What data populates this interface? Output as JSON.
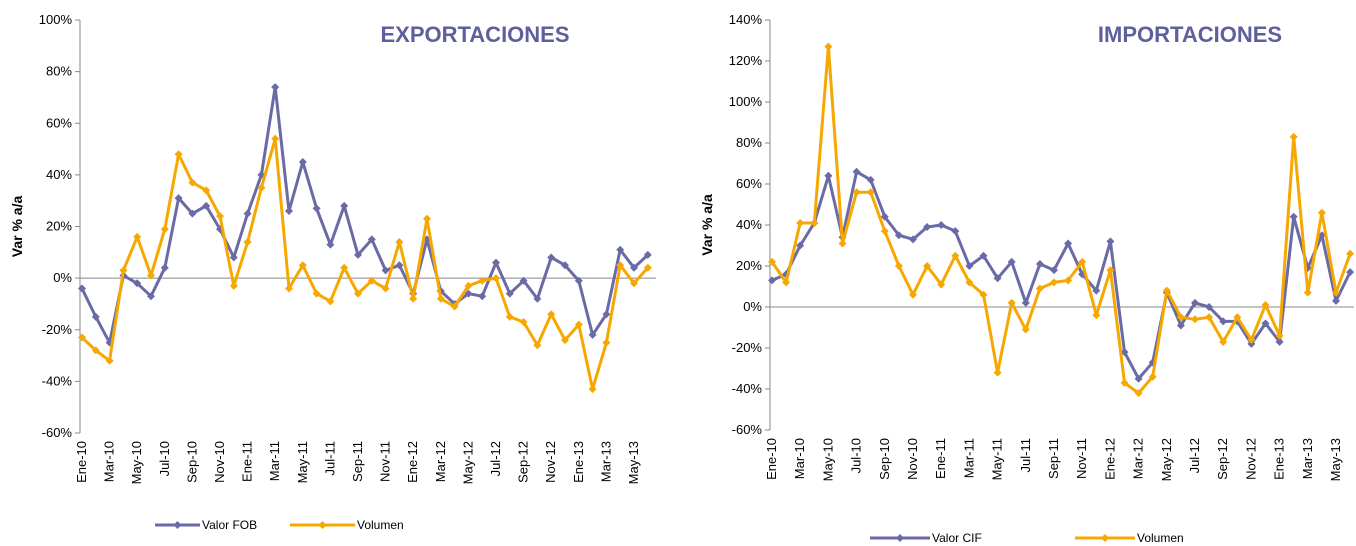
{
  "chart_data": [
    {
      "type": "line",
      "title": "EXPORTACIONES",
      "y_label": "Var % a/a",
      "categories": [
        "Ene-10",
        null,
        "Mar-10",
        null,
        "May-10",
        null,
        "Jul-10",
        null,
        "Sep-10",
        null,
        "Nov-10",
        null,
        "Ene-11",
        null,
        "Mar-11",
        null,
        "May-11",
        null,
        "Jul-11",
        null,
        "Sep-11",
        null,
        "Nov-11",
        null,
        "Ene-12",
        null,
        "Mar-12",
        null,
        "May-12",
        null,
        "Jul-12",
        null,
        "Sep-12",
        null,
        "Nov-12",
        null,
        "Ene-13",
        null,
        "Mar-13",
        null,
        "May-13",
        null
      ],
      "series": [
        {
          "name": "Valor FOB",
          "color": "#6a6aa6",
          "values": [
            -4,
            -15,
            -25,
            1,
            -2,
            -7,
            4,
            31,
            25,
            28,
            19,
            8,
            25,
            40,
            74,
            26,
            45,
            27,
            13,
            28,
            9,
            15,
            3,
            5,
            -6,
            15,
            -5,
            -10,
            -6,
            -7,
            6,
            -6,
            -1,
            -8,
            8,
            5,
            -1,
            -22,
            -14,
            11,
            4,
            9
          ]
        },
        {
          "name": "Volumen",
          "color": "#f7a800",
          "values": [
            -23,
            -28,
            -32,
            3,
            16,
            1,
            19,
            48,
            37,
            34,
            24,
            -3,
            14,
            35,
            54,
            -4,
            5,
            -6,
            -9,
            4,
            -6,
            -1,
            -4,
            14,
            -8,
            23,
            -8,
            -11,
            -3,
            -1,
            0,
            -15,
            -17,
            -26,
            -14,
            -24,
            -18,
            -43,
            -25,
            5,
            -2,
            4
          ]
        }
      ],
      "ylim": [
        -60,
        100
      ],
      "yticks": [
        {
          "value": -60,
          "label": "-60%"
        },
        {
          "value": -40,
          "label": "-40%"
        },
        {
          "value": -20,
          "label": "-20%"
        },
        {
          "value": 0,
          "label": "0%"
        },
        {
          "value": 20,
          "label": "20%"
        },
        {
          "value": 40,
          "label": "40%"
        },
        {
          "value": 60,
          "label": "60%"
        },
        {
          "value": 80,
          "label": "80%"
        },
        {
          "value": 100,
          "label": "100%"
        }
      ]
    },
    {
      "type": "line",
      "title": "IMPORTACIONES",
      "y_label": "Var % a/a",
      "categories": [
        "Ene-10",
        null,
        "Mar-10",
        null,
        "May-10",
        null,
        "Jul-10",
        null,
        "Sep-10",
        null,
        "Nov-10",
        null,
        "Ene-11",
        null,
        "Mar-11",
        null,
        "May-11",
        null,
        "Jul-11",
        null,
        "Sep-11",
        null,
        "Nov-11",
        null,
        "Ene-12",
        null,
        "Mar-12",
        null,
        "May-12",
        null,
        "Jul-12",
        null,
        "Sep-12",
        null,
        "Nov-12",
        null,
        "Ene-13",
        null,
        "Mar-13",
        null,
        "May-13",
        null
      ],
      "series": [
        {
          "name": "Valor CIF",
          "color": "#6a6aa6",
          "values": [
            13,
            16,
            30,
            41,
            64,
            34,
            66,
            62,
            44,
            35,
            33,
            39,
            40,
            37,
            20,
            25,
            14,
            22,
            2,
            21,
            18,
            31,
            16,
            8,
            32,
            -22,
            -35,
            -27,
            7,
            -9,
            2,
            0,
            -7,
            -7,
            -18,
            -8,
            -17,
            44,
            19,
            35,
            3,
            17
          ]
        },
        {
          "name": "Volumen",
          "color": "#f7a800",
          "values": [
            22,
            12,
            41,
            41,
            127,
            31,
            56,
            56,
            37,
            20,
            6,
            20,
            11,
            25,
            12,
            6,
            -32,
            2,
            -11,
            9,
            12,
            13,
            22,
            -4,
            18,
            -37,
            -42,
            -34,
            8,
            -5,
            -6,
            -5,
            -17,
            -5,
            -16,
            1,
            -14,
            83,
            7,
            46,
            7,
            26
          ]
        }
      ],
      "ylim": [
        -60,
        140
      ],
      "yticks": [
        {
          "value": -60,
          "label": "-60%"
        },
        {
          "value": -40,
          "label": "-40%"
        },
        {
          "value": -20,
          "label": "-20%"
        },
        {
          "value": 0,
          "label": "0%"
        },
        {
          "value": 20,
          "label": "20%"
        },
        {
          "value": 40,
          "label": "40%"
        },
        {
          "value": 60,
          "label": "60%"
        },
        {
          "value": 80,
          "label": "80%"
        },
        {
          "value": 100,
          "label": "100%"
        },
        {
          "value": 120,
          "label": "120%"
        },
        {
          "value": 140,
          "label": "140%"
        }
      ]
    }
  ]
}
